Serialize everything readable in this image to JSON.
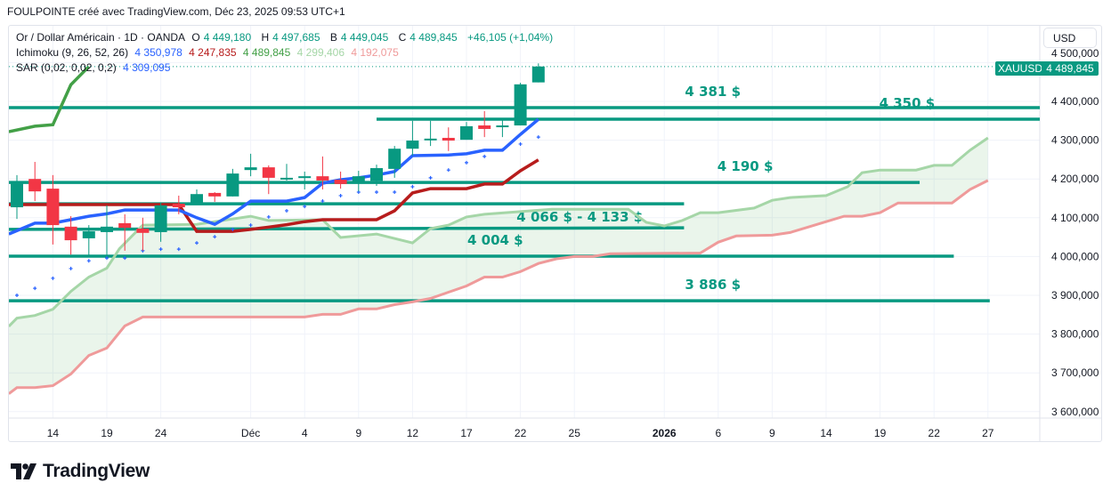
{
  "header": {
    "text": "FOULPOINTE créé avec TradingView.com, Déc 23, 2025 09:53 UTC+1"
  },
  "legend": {
    "symbol": "Or / Dollar Américain · 1D · OANDA",
    "o_label": "O",
    "o": "4 449,180",
    "h_label": "H",
    "h": "4 497,685",
    "b_label": "B",
    "b": "4 449,045",
    "c_label": "C",
    "c": "4 489,845",
    "change": "+46,105 (+1,04%)",
    "ichimoku": "Ichimoku (9, 26, 52, 26)",
    "ichi_values": [
      "4 350,978",
      "4 247,835",
      "4 489,845",
      "4 299,406",
      "4 192,075"
    ],
    "sar": "SAR (0,02, 0,02, 0,2)",
    "sar_value": "4 309,095"
  },
  "price_axis": {
    "currency": "USD",
    "symbol_tag": "XAUUSD",
    "last_price": "4 489,845"
  },
  "brand": {
    "name": "TradingView"
  },
  "colors": {
    "up": "#089981",
    "down": "#f23645",
    "tenkan": "#2962ff",
    "kijun": "#b71c1c",
    "chikou": "#43a047",
    "senkou_a": "#a5d6a7",
    "senkou_b": "#ef9a9a",
    "level": "#089981",
    "sar": "#2962ff"
  },
  "chart_data": {
    "type": "candlestick",
    "title": "Or / Dollar Américain · 1D · OANDA",
    "x_unit": "bar index (0 = Nov 12, 2025)",
    "ylim": [
      3560,
      4590
    ],
    "y_ticks": [
      {
        "value": 4500,
        "label": "4 500,000"
      },
      {
        "value": 4400,
        "label": "4 400,000"
      },
      {
        "value": 4300,
        "label": "4 300,000"
      },
      {
        "value": 4200,
        "label": "4 200,000"
      },
      {
        "value": 4100,
        "label": "4 100,000"
      },
      {
        "value": 4000,
        "label": "4 000,000"
      },
      {
        "value": 3900,
        "label": "3 900,000"
      },
      {
        "value": 3800,
        "label": "3 800,000"
      },
      {
        "value": 3700,
        "label": "3 700,000"
      },
      {
        "value": 3600,
        "label": "3 600,000"
      }
    ],
    "x_ticks": [
      {
        "index": 2,
        "label": "14"
      },
      {
        "index": 5,
        "label": "19"
      },
      {
        "index": 8,
        "label": "24"
      },
      {
        "index": 13,
        "label": "Déc"
      },
      {
        "index": 16,
        "label": "4"
      },
      {
        "index": 19,
        "label": "9"
      },
      {
        "index": 22,
        "label": "12"
      },
      {
        "index": 25,
        "label": "17"
      },
      {
        "index": 28,
        "label": "22"
      },
      {
        "index": 31,
        "label": "25"
      },
      {
        "index": 36,
        "label": "2026"
      },
      {
        "index": 39,
        "label": "6"
      },
      {
        "index": 42,
        "label": "9"
      },
      {
        "index": 45,
        "label": "14"
      },
      {
        "index": 48,
        "label": "19"
      },
      {
        "index": 51,
        "label": "22"
      },
      {
        "index": 54,
        "label": "27"
      }
    ],
    "ohlc": [
      [
        4127,
        4210,
        4097,
        4194
      ],
      [
        4200,
        4244,
        4143,
        4168
      ],
      [
        4175,
        4210,
        4031,
        4081
      ],
      [
        4077,
        4104,
        4005,
        4042
      ],
      [
        4047,
        4081,
        4003,
        4065
      ],
      [
        4063,
        4132,
        4001,
        4077
      ],
      [
        4086,
        4109,
        4015,
        4074
      ],
      [
        4072,
        4100,
        4015,
        4061
      ],
      [
        4063,
        4139,
        4038,
        4132
      ],
      [
        4136,
        4157,
        4109,
        4127
      ],
      [
        4134,
        4173,
        4134,
        4161
      ],
      [
        4164,
        4166,
        4141,
        4155
      ],
      [
        4155,
        4226,
        4155,
        4214
      ],
      [
        4223,
        4265,
        4207,
        4230
      ],
      [
        4230,
        4235,
        4161,
        4203
      ],
      [
        4201,
        4239,
        4196,
        4203
      ],
      [
        4204,
        4219,
        4173,
        4207
      ],
      [
        4207,
        4258,
        4173,
        4196
      ],
      [
        4198,
        4219,
        4175,
        4187
      ],
      [
        4191,
        4221,
        4168,
        4207
      ],
      [
        4195,
        4237,
        4182,
        4228
      ],
      [
        4226,
        4285,
        4203,
        4278
      ],
      [
        4278,
        4350,
        4260,
        4299
      ],
      [
        4302,
        4350,
        4285,
        4304
      ],
      [
        4306,
        4333,
        4272,
        4299
      ],
      [
        4301,
        4347,
        4301,
        4336
      ],
      [
        4338,
        4375,
        4308,
        4329
      ],
      [
        4336,
        4356,
        4308,
        4338
      ],
      [
        4338,
        4448,
        4338,
        4444
      ],
      [
        4449,
        4498,
        4449,
        4490
      ]
    ],
    "last_price": 4489.845,
    "tenkan": [
      [
        -0.45,
        4058
      ],
      [
        1,
        4086
      ],
      [
        2,
        4086
      ],
      [
        3,
        4095
      ],
      [
        4,
        4104
      ],
      [
        5,
        4110
      ],
      [
        6,
        4120
      ],
      [
        9,
        4120
      ],
      [
        10,
        4100
      ],
      [
        11,
        4083
      ],
      [
        12,
        4110
      ],
      [
        13,
        4143
      ],
      [
        15,
        4143
      ],
      [
        16,
        4152
      ],
      [
        17,
        4189
      ],
      [
        18,
        4198
      ],
      [
        19,
        4203
      ],
      [
        20,
        4210
      ],
      [
        21,
        4219
      ],
      [
        22,
        4260
      ],
      [
        24,
        4262
      ],
      [
        25,
        4265
      ],
      [
        26,
        4274
      ],
      [
        27,
        4274
      ],
      [
        28,
        4315
      ],
      [
        29,
        4354
      ]
    ],
    "kijun": [
      [
        -0.45,
        4134
      ],
      [
        9,
        4134
      ],
      [
        10,
        4065
      ],
      [
        12,
        4065
      ],
      [
        13,
        4070
      ],
      [
        14,
        4076
      ],
      [
        15,
        4082
      ],
      [
        16,
        4090
      ],
      [
        17,
        4095
      ],
      [
        20,
        4095
      ],
      [
        21,
        4118
      ],
      [
        22,
        4164
      ],
      [
        23,
        4175
      ],
      [
        25,
        4175
      ],
      [
        26,
        4187
      ],
      [
        27,
        4187
      ],
      [
        28,
        4221
      ],
      [
        29,
        4249
      ]
    ],
    "chikou": [
      [
        -0.45,
        4322
      ],
      [
        1,
        4336
      ],
      [
        2,
        4340
      ],
      [
        3,
        4443
      ],
      [
        4,
        4490
      ]
    ],
    "senkou_a": [
      [
        -0.45,
        3820
      ],
      [
        0,
        3841
      ],
      [
        1,
        3848
      ],
      [
        2,
        3864
      ],
      [
        3,
        3910
      ],
      [
        4,
        3947
      ],
      [
        5,
        3970
      ],
      [
        5.7,
        4020
      ],
      [
        7,
        4081
      ],
      [
        10,
        4083
      ],
      [
        13,
        4104
      ],
      [
        14,
        4093
      ],
      [
        17,
        4095
      ],
      [
        18,
        4049
      ],
      [
        20,
        4058
      ],
      [
        22,
        4035
      ],
      [
        23,
        4072
      ],
      [
        24,
        4081
      ],
      [
        25,
        4102
      ],
      [
        26,
        4109
      ],
      [
        29.75,
        4122
      ],
      [
        34,
        4122
      ],
      [
        35,
        4088
      ],
      [
        36,
        4079
      ],
      [
        37,
        4093
      ],
      [
        38,
        4113
      ],
      [
        39,
        4113
      ],
      [
        41,
        4125
      ],
      [
        42,
        4145
      ],
      [
        43,
        4152
      ],
      [
        45,
        4157
      ],
      [
        46.2,
        4180
      ],
      [
        47,
        4216
      ],
      [
        48,
        4223
      ],
      [
        50,
        4223
      ],
      [
        51,
        4235
      ],
      [
        52,
        4235
      ],
      [
        53,
        4274
      ],
      [
        54,
        4306
      ]
    ],
    "senkou_b": [
      [
        -0.45,
        3646
      ],
      [
        0,
        3662
      ],
      [
        1,
        3662
      ],
      [
        2,
        3667
      ],
      [
        3,
        3697
      ],
      [
        4,
        3745
      ],
      [
        5,
        3764
      ],
      [
        6,
        3821
      ],
      [
        7,
        3844
      ],
      [
        16,
        3844
      ],
      [
        17,
        3851
      ],
      [
        18,
        3851
      ],
      [
        19,
        3865
      ],
      [
        20,
        3865
      ],
      [
        21,
        3876
      ],
      [
        22,
        3883
      ],
      [
        23,
        3892
      ],
      [
        24,
        3908
      ],
      [
        25,
        3924
      ],
      [
        26,
        3947
      ],
      [
        27,
        3947
      ],
      [
        28,
        3961
      ],
      [
        29,
        3982
      ],
      [
        30,
        3994
      ],
      [
        31,
        4000
      ],
      [
        32,
        4000
      ],
      [
        33,
        4007
      ],
      [
        38,
        4009
      ],
      [
        39,
        4037
      ],
      [
        40,
        4053
      ],
      [
        42,
        4055
      ],
      [
        43,
        4062
      ],
      [
        45,
        4090
      ],
      [
        46,
        4104
      ],
      [
        47,
        4104
      ],
      [
        48,
        4113
      ],
      [
        49,
        4138
      ],
      [
        52,
        4138
      ],
      [
        53,
        4173
      ],
      [
        54,
        4196
      ]
    ],
    "sar": [
      [
        0,
        3900
      ],
      [
        1,
        3918
      ],
      [
        2,
        3944
      ],
      [
        3,
        3969
      ],
      [
        4,
        3989
      ],
      [
        5,
        3996
      ],
      [
        6,
        3996
      ],
      [
        7,
        4015
      ],
      [
        8,
        4019
      ],
      [
        9,
        4019
      ],
      [
        10,
        4035
      ],
      [
        11,
        4051
      ],
      [
        12,
        4070
      ],
      [
        13,
        4081
      ],
      [
        14,
        4102
      ],
      [
        15,
        4118
      ],
      [
        16,
        4129
      ],
      [
        17,
        4143
      ],
      [
        18,
        4157
      ],
      [
        19,
        4166
      ],
      [
        20,
        4166
      ],
      [
        21,
        4166
      ],
      [
        22,
        4180
      ],
      [
        23,
        4203
      ],
      [
        24,
        4223
      ],
      [
        25,
        4242
      ],
      [
        26,
        4258
      ],
      [
        27,
        4275
      ],
      [
        28,
        4290
      ],
      [
        29,
        4308
      ]
    ],
    "levels": [
      {
        "label": "4 381 $",
        "start": -0.45,
        "end": 57.2,
        "v0": 4384,
        "v1": 4384,
        "label_index": 38.7
      },
      {
        "label": "4 350 $",
        "start": 20,
        "end": 57.2,
        "v0": 4354,
        "v1": 4354,
        "label_index": 49.5
      },
      {
        "label": "4 190 $",
        "start": -0.45,
        "end": 50.2,
        "v0": 4191,
        "v1": 4191,
        "label_index": 40.5
      },
      {
        "label": "",
        "start": -0.45,
        "end": 37.1,
        "v0": 4136,
        "v1": 4136,
        "label_index": 0
      },
      {
        "label": "4 066 $ - 4 133 $",
        "start": -0.45,
        "end": 37.1,
        "v0": 4070,
        "v1": 4074,
        "label_index": 31.3
      },
      {
        "label": "4 004 $",
        "start": -0.45,
        "end": 52.1,
        "v0": 4001,
        "v1": 4001,
        "label_index": 26.6
      },
      {
        "label": "3 886 $",
        "start": -0.45,
        "end": 54.1,
        "v0": 3886,
        "v1": 3886,
        "label_index": 38.7
      }
    ]
  }
}
